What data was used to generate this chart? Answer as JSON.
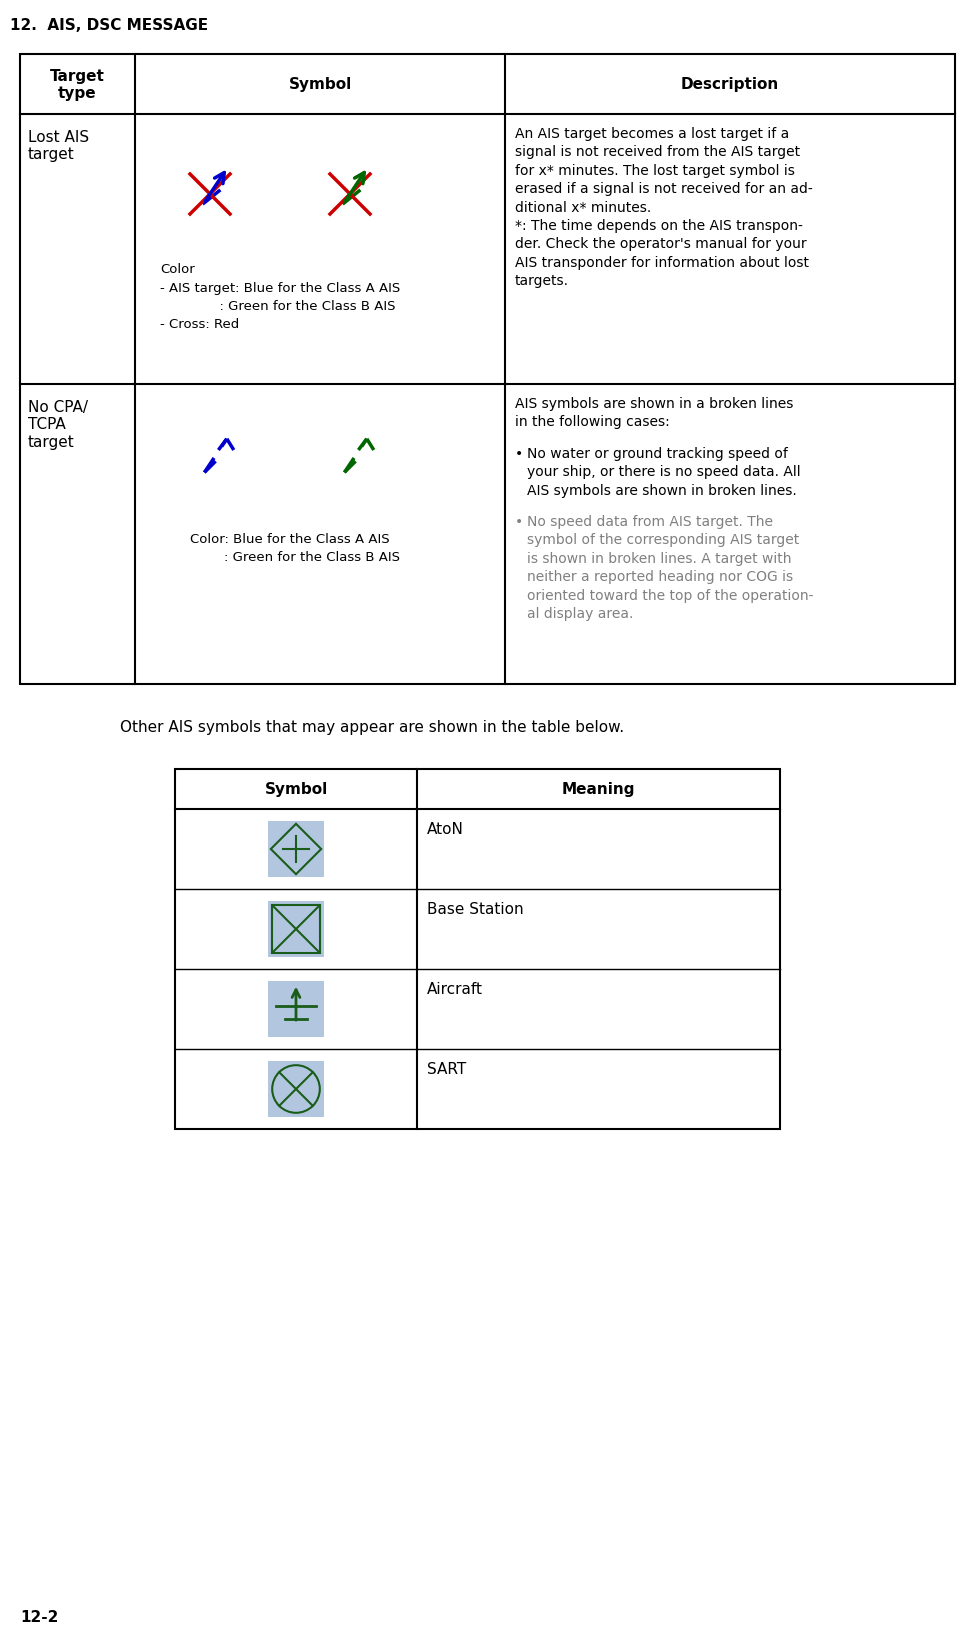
{
  "page_title": "12.  AIS, DSC MESSAGE",
  "page_number": "12-2",
  "bg_color": "#ffffff",
  "separator_text": "Other AIS symbols that may appear are shown in the table below.",
  "table2_rows": [
    "AtoN",
    "Base Station",
    "Aircraft",
    "SART"
  ],
  "blue_color": "#0000cc",
  "green_color": "#006600",
  "red_color": "#cc0000",
  "dark_green": "#1a5c1a",
  "icon_bg": "#b3c6e0",
  "gray_color": "#808080",
  "desc1": "An AIS target becomes a lost target if a\nsignal is not received from the AIS target\nfor x* minutes. The lost target symbol is\nerased if a signal is not received for an ad-\nditional x* minutes.\n*: The time depends on the AIS transpon-\nder. Check the operator's manual for your\nAIS transponder for information about lost\ntargets.",
  "desc2_intro": "AIS symbols are shown in a broken lines\nin the following cases:",
  "bullet1": "No water or ground tracking speed of\nyour ship, or there is no speed data. All\nAIS symbols are shown in broken lines.",
  "bullet2": "No speed data from AIS target. The\nsymbol of the corresponding AIS target\nis shown in broken lines. A target with\nneither a reported heading nor COG is\noriented toward the top of the operation-\nal display area."
}
